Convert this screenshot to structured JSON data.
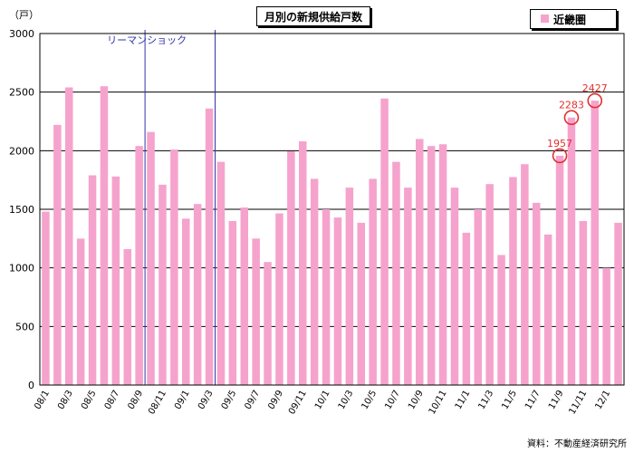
{
  "chart_data": {
    "type": "bar",
    "title": "月別の新規供給戸数",
    "ylabel": "（戸）",
    "ylim": [
      0,
      3000
    ],
    "yticks": [
      0,
      500,
      1000,
      1500,
      2000,
      2500,
      3000
    ],
    "grid": true,
    "legend_position": "top-right",
    "series": [
      {
        "name": "近畿圏",
        "color": "#f5a3cd",
        "values": [
          1480,
          2220,
          2540,
          1250,
          1790,
          2550,
          1780,
          1160,
          2040,
          2160,
          1710,
          2010,
          1420,
          1545,
          2360,
          1905,
          1400,
          1515,
          1250,
          1050,
          1465,
          1995,
          2080,
          1760,
          1500,
          1430,
          1685,
          1385,
          1760,
          2445,
          1905,
          1685,
          2100,
          2040,
          2055,
          1685,
          1300,
          1500,
          1715,
          1110,
          1775,
          1885,
          1555,
          1285,
          1957,
          2283,
          1400,
          2427,
          1000,
          1385
        ]
      }
    ],
    "x_tick_labels": [
      "08/1",
      "08/3",
      "08/5",
      "08/7",
      "08/9",
      "08/11",
      "09/1",
      "09/3",
      "09/5",
      "09/7",
      "09/9",
      "09/11",
      "10/1",
      "10/3",
      "10/5",
      "10/7",
      "10/9",
      "10/11",
      "11/1",
      "11/3",
      "11/5",
      "11/7",
      "11/9",
      "11/11",
      "12/1"
    ],
    "annotations": [
      {
        "text": "リーマンショック",
        "x_index": 8.5,
        "x_index_end": 14.5,
        "color": "#3333aa"
      },
      {
        "text": "1957",
        "x_index": 44,
        "value": 1957,
        "color": "#e03030"
      },
      {
        "text": "2283",
        "x_index": 45,
        "value": 2283,
        "color": "#e03030"
      },
      {
        "text": "2427",
        "x_index": 47,
        "value": 2427,
        "color": "#e03030"
      }
    ],
    "source": "資料：不動産経済研究所"
  }
}
